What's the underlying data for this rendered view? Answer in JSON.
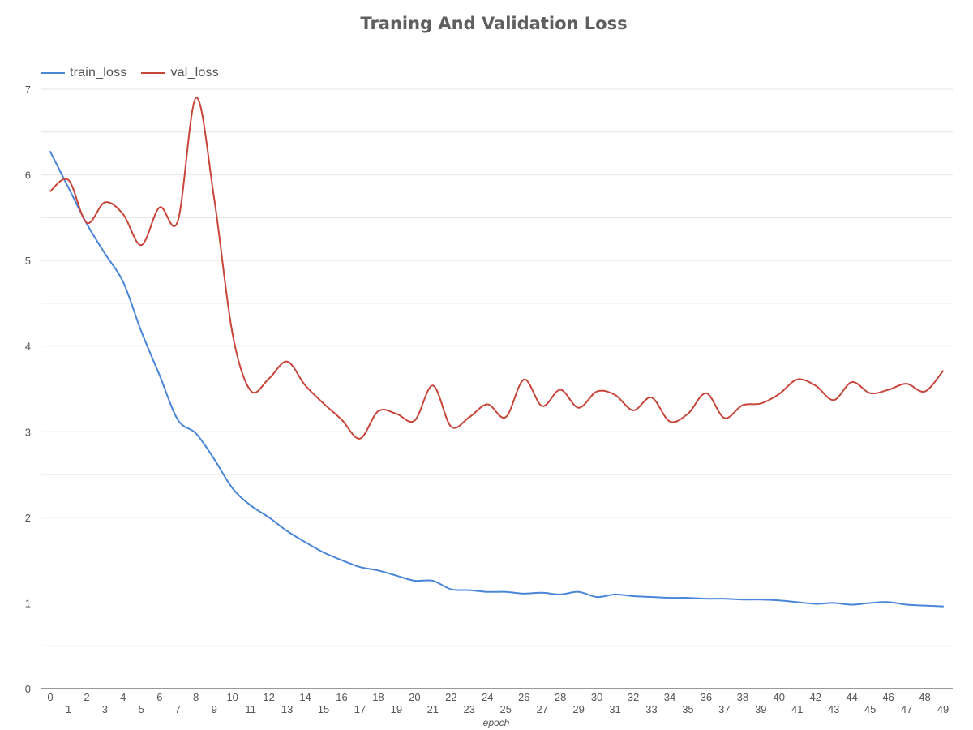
{
  "chart_data": {
    "type": "line",
    "title": "Traning And Validation Loss",
    "xlabel": "epoch",
    "ylabel": "",
    "x": [
      0,
      1,
      2,
      3,
      4,
      5,
      6,
      7,
      8,
      9,
      10,
      11,
      12,
      13,
      14,
      15,
      16,
      17,
      18,
      19,
      20,
      21,
      22,
      23,
      24,
      25,
      26,
      27,
      28,
      29,
      30,
      31,
      32,
      33,
      34,
      35,
      36,
      37,
      38,
      39,
      40,
      41,
      42,
      43,
      44,
      45,
      46,
      47,
      48,
      49
    ],
    "xlim": [
      0,
      49
    ],
    "ylim": [
      0,
      7
    ],
    "yticks": [
      0,
      1,
      2,
      3,
      4,
      5,
      6,
      7
    ],
    "grid": true,
    "legend_position": "top-left",
    "series": [
      {
        "name": "train_loss",
        "color": "#4a86d8",
        "values": [
          6.27,
          5.85,
          5.43,
          5.08,
          4.75,
          4.17,
          3.66,
          3.14,
          2.98,
          2.68,
          2.34,
          2.14,
          2.0,
          1.84,
          1.71,
          1.59,
          1.5,
          1.42,
          1.38,
          1.32,
          1.26,
          1.26,
          1.16,
          1.15,
          1.13,
          1.13,
          1.11,
          1.12,
          1.1,
          1.13,
          1.07,
          1.1,
          1.08,
          1.07,
          1.06,
          1.06,
          1.05,
          1.05,
          1.04,
          1.04,
          1.03,
          1.01,
          0.99,
          1.0,
          0.98,
          1.0,
          1.01,
          0.98,
          0.97,
          0.96
        ]
      },
      {
        "name": "val_loss",
        "color": "#c8453a",
        "values": [
          5.81,
          5.94,
          5.44,
          5.68,
          5.54,
          5.18,
          5.62,
          5.46,
          6.9,
          5.72,
          4.15,
          3.48,
          3.62,
          3.82,
          3.54,
          3.33,
          3.14,
          2.92,
          3.24,
          3.21,
          3.13,
          3.54,
          3.06,
          3.17,
          3.32,
          3.17,
          3.61,
          3.3,
          3.49,
          3.28,
          3.47,
          3.43,
          3.25,
          3.4,
          3.12,
          3.21,
          3.45,
          3.16,
          3.31,
          3.33,
          3.44,
          3.61,
          3.54,
          3.37,
          3.58,
          3.45,
          3.49,
          3.56,
          3.47,
          3.71
        ]
      }
    ]
  }
}
